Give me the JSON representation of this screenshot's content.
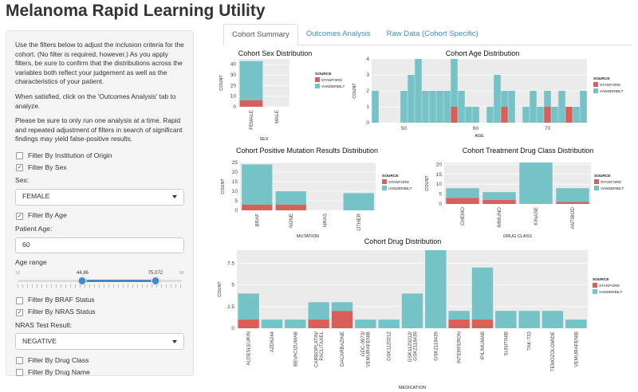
{
  "app": {
    "title": "Melanoma Rapid Learning Utility"
  },
  "sidebar": {
    "intro": "Use the filters below to adjust the inclusion criteria for the cohort. (No filter is required, however.) As you apply filters, be sure to confirm that the distributions across the variables both reflect your judgement as well as the characteristics of your patient.",
    "when_satisfied": "When satisfied, click on the 'Outcomes Analysis' tab to analyze.",
    "warning": "Please be sure to only run one analysis at a time. Rapid and repeated adjustment of filters in search of significant findings may yield false-positive results.",
    "filter_institution": {
      "label": "Filter By Institution of Origin",
      "checked": false
    },
    "filter_sex": {
      "label": "Filter By Sex",
      "checked": true
    },
    "sex_label": "Sex:",
    "sex_value": "FEMALE",
    "filter_age": {
      "label": "Filter By Age",
      "checked": true
    },
    "patient_age_label": "Patient Age:",
    "patient_age_value": "60",
    "age_range_label": "Age range",
    "age_range": {
      "min_label": "18",
      "max_label": "86",
      "low": "44.86",
      "high": "75.072",
      "low_frac": 0.395,
      "high_frac": 0.839
    },
    "filter_braf": {
      "label": "Filter By BRAF Status",
      "checked": false
    },
    "filter_nras": {
      "label": "Filter By NRAS Status",
      "checked": true
    },
    "nras_label": "NRAS Test Result:",
    "nras_value": "NEGATIVE",
    "filter_drug_class": {
      "label": "Filter By Drug Class",
      "checked": false
    },
    "filter_drug_name": {
      "label": "Filter By Drug Name",
      "checked": false
    }
  },
  "tabs": [
    {
      "label": "Cohort Summary",
      "active": true
    },
    {
      "label": "Outcomes Analysis",
      "active": false
    },
    {
      "label": "Raw Data (Cohort Specific)",
      "active": false
    }
  ],
  "colors": {
    "stanford": "#d9605a",
    "vanderbilt": "#76c3c7",
    "panel": "#ebebeb"
  },
  "legend": {
    "title": "SOURCE",
    "items": [
      "STANFORD",
      "VANDERBILT"
    ]
  },
  "chart_data": [
    {
      "id": "sex",
      "type": "bar",
      "title": "Cohort Sex Distribution",
      "xlabel": "SEX",
      "ylabel": "COUNT",
      "categories": [
        "FEMALE",
        "MALE"
      ],
      "series": [
        {
          "name": "STANFORD",
          "values": [
            6,
            0
          ]
        },
        {
          "name": "VANDERBILT",
          "values": [
            37,
            0
          ]
        }
      ],
      "ylim": [
        0,
        45
      ],
      "yticks": [
        0,
        10,
        20,
        30,
        40
      ]
    },
    {
      "id": "age",
      "type": "bar",
      "title": "Cohort Age Distribution",
      "xlabel": "AGE",
      "ylabel": "COUNT",
      "x": [
        46,
        47,
        48,
        49,
        50,
        51,
        52,
        53,
        54,
        55,
        56,
        57,
        58,
        59,
        60,
        61,
        62,
        63,
        64,
        65,
        66,
        67,
        68,
        69,
        70,
        71,
        72,
        73,
        74,
        75
      ],
      "series": [
        {
          "name": "STANFORD",
          "values": [
            0,
            0,
            0,
            0,
            0,
            0,
            0,
            0,
            0,
            0,
            0,
            1,
            0,
            0,
            0,
            0,
            0,
            0,
            1,
            0,
            0,
            0,
            0,
            0,
            1,
            0,
            0,
            1,
            0,
            0
          ]
        },
        {
          "name": "VANDERBILT",
          "values": [
            2,
            0,
            0,
            0,
            2,
            3,
            4,
            2,
            2,
            2,
            2,
            3,
            2,
            1,
            1,
            0,
            1,
            3,
            1,
            2,
            0,
            1,
            2,
            1,
            1,
            1,
            2,
            0,
            1,
            2
          ]
        }
      ],
      "xticks": [
        50,
        60,
        70
      ],
      "ylim": [
        0,
        4
      ],
      "yticks": [
        0,
        1,
        2,
        3,
        4
      ]
    },
    {
      "id": "mutation",
      "type": "bar",
      "title": "Cohort Positive Mutation Results Distribution",
      "xlabel": "MUTATION",
      "ylabel": "COUNT",
      "categories": [
        "BRAF",
        "NONE",
        "NRAS",
        "OTHER"
      ],
      "series": [
        {
          "name": "STANFORD",
          "values": [
            3,
            3,
            0,
            0
          ]
        },
        {
          "name": "VANDERBILT",
          "values": [
            21,
            7,
            0,
            9
          ]
        }
      ],
      "ylim": [
        0,
        25
      ],
      "yticks": [
        0,
        5,
        10,
        15,
        20,
        25
      ]
    },
    {
      "id": "drugclass",
      "type": "bar",
      "title": "Cohort Treatment Drug Class Distribution",
      "xlabel": "DRUG CLASS",
      "ylabel": "COUNT",
      "categories": [
        "CHEMO",
        "IMMUNO",
        "KINASE",
        "ANTIBOD"
      ],
      "series": [
        {
          "name": "STANFORD",
          "values": [
            3,
            2,
            0,
            1
          ]
        },
        {
          "name": "VANDERBILT",
          "values": [
            5,
            4,
            21,
            7
          ]
        }
      ],
      "ylim": [
        0,
        21
      ],
      "yticks": [
        0,
        5,
        10,
        15,
        20
      ]
    },
    {
      "id": "drug",
      "type": "bar",
      "title": "Cohort Drug Distribution",
      "xlabel": "MEDICATION",
      "ylabel": "COUNT",
      "categories": [
        "ALDESLEUKIN",
        "AZD6244",
        "BEVACIZUMAB",
        "CARBOPLATIN/ PACLITAXEL",
        "DACARBAZINE",
        "GDC-0973/ VEMURAFENIB",
        "GSK1120212",
        "GSK1120212/ GSK2118436",
        "GSK2118436",
        "INTERFERON",
        "IPILIMUMAB",
        "SUNITINIB",
        "TAK-733",
        "TEMOZOLOMIDE",
        "VEMURAFENIB"
      ],
      "series": [
        {
          "name": "STANFORD",
          "values": [
            1,
            0,
            0,
            1,
            2,
            0,
            0,
            0,
            0,
            1,
            1,
            0,
            0,
            0,
            0
          ]
        },
        {
          "name": "VANDERBILT",
          "values": [
            3,
            1,
            1,
            2,
            1,
            1,
            1,
            4,
            9,
            1,
            6,
            2,
            2,
            2,
            1
          ]
        }
      ],
      "ylim": [
        0,
        9
      ],
      "yticks": [
        0,
        2.5,
        5,
        7.5
      ]
    }
  ]
}
